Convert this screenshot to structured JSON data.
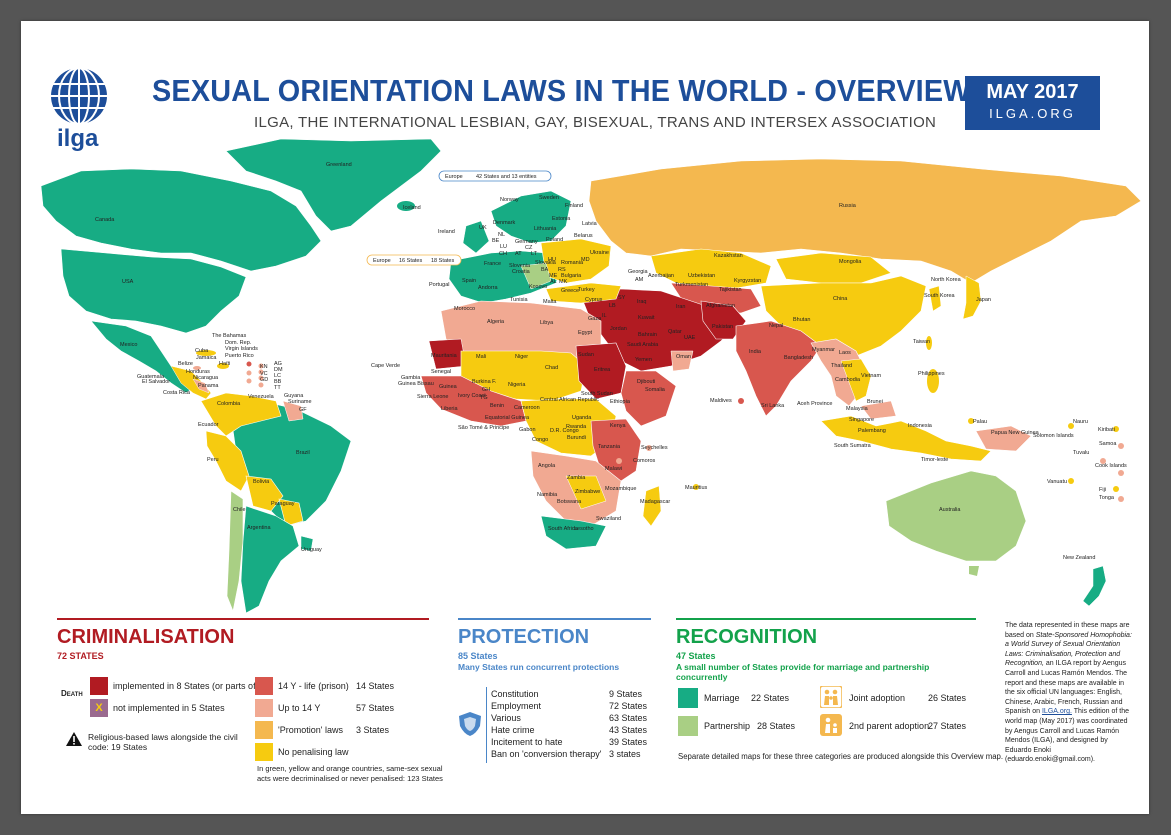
{
  "header": {
    "logo_text": "ilga",
    "title": "SEXUAL ORIENTATION LAWS IN THE WORLD - OVERVIEW",
    "subtitle": "ILGA, THE INTERNATIONAL LESBIAN, GAY, BISEXUAL, TRANS AND INTERSEX ASSOCIATION",
    "date": "MAY 2017",
    "site": "ILGA.ORG"
  },
  "colors": {
    "brand_blue": "#1d4e9a",
    "death_implemented": "#b11b22",
    "death_not_implemented": "#9a6a8f",
    "life": "#d8574e",
    "up_to_14": "#f1a992",
    "promotion": "#f4b84f",
    "no_penalising": "#f6cb10",
    "marriage": "#17ac84",
    "partnership": "#a9cf84",
    "protection_blue": "#4a86c8",
    "recognition_green": "#13a24b",
    "criminalisation_red": "#b11b22"
  },
  "map": {
    "europe_box": "Europe",
    "europe_box_count": "42 States and 13 entities",
    "europe_box2": "Europe",
    "europe_box2_a": "16 States",
    "europe_box2_b": "18 States",
    "labels": {
      "greenland": "Greenland",
      "canada": "Canada",
      "usa": "USA",
      "mexico": "Mexico",
      "cuba": "Cuba",
      "bahamas": "The Bahamas",
      "dom_rep": "Dom. Rep.",
      "virgin_islands": "Virgin Islands",
      "puerto_rico": "Puerto Rico",
      "jamaica": "Jamaica",
      "haiti": "Haïti",
      "belize": "Belize",
      "honduras": "Honduras",
      "guatemala": "Guatemala",
      "el_salvador": "El Salvador",
      "nicaragua": "Nicaragua",
      "costa_rica": "Costa Rica",
      "panama": "Panama",
      "ag": "AG",
      "dm": "DM",
      "lc": "LC",
      "bb": "BB",
      "tt": "TT",
      "kn": "KN",
      "vc": "VC",
      "gd": "GD",
      "colombia": "Colombia",
      "venezuela": "Venezuela",
      "guyana": "Guyana",
      "suriname": "Suriname",
      "gf": "GF",
      "ecuador": "Ecuador",
      "peru": "Peru",
      "brazil": "Brazil",
      "bolivia": "Bolivia",
      "paraguay": "Paraguay",
      "chile": "Chile",
      "argentina": "Argentina",
      "uruguay": "Uruguay",
      "iceland": "Iceland",
      "ireland": "Ireland",
      "uk": "UK",
      "portugal": "Portugal",
      "spain": "Spain",
      "andorra": "Andorra",
      "france": "France",
      "norway": "Norway",
      "sweden": "Sweden",
      "finland": "Finland",
      "denmark": "Denmark",
      "estonia": "Estonia",
      "latvia": "Latvia",
      "lithuania": "Lithuania",
      "nl": "NL",
      "be": "BE",
      "lu": "LU",
      "ch": "CH",
      "germany": "Germany",
      "poland": "Poland",
      "belarus": "Belarus",
      "ukraine": "Ukraine",
      "cz": "CZ",
      "sk": "SK",
      "at": "AT",
      "hu": "HU",
      "lt": "LT",
      "slovenia": "Slovenia",
      "croatia": "Croatia",
      "ba": "BA",
      "rs": "RS",
      "me": "ME",
      "mk": "MK",
      "al": "AL",
      "kosovo": "Kosovo",
      "slovakia": "Slovakia",
      "romania": "Romania",
      "md": "MD",
      "bulgaria": "Bulgaria",
      "greece": "Greece",
      "malta": "Malta",
      "turkey": "Turkey",
      "cyprus": "Cyprus",
      "russia": "Russia",
      "kazakhstan": "Kazakhstan",
      "mongolia": "Mongolia",
      "china": "China",
      "north_korea": "North Korea",
      "south_korea": "South Korea",
      "japan": "Japan",
      "taiwan": "Taiwan",
      "georgia": "Georgia",
      "am": "AM",
      "azerbaijan": "Azerbaijan",
      "uzbekistan": "Uzbekistan",
      "turkmenistan": "Turkmenistan",
      "kyrgyzstan": "Kyrgyzstan",
      "tajikistan": "Tajikistan",
      "afghanistan": "Afghanistan",
      "pakistan": "Pakistan",
      "iran": "Iran",
      "iraq": "Iraq",
      "sy": "SY",
      "lb": "LB",
      "il": "IL",
      "gaza": "Gaza",
      "jordan": "Jordan",
      "kuwait": "Kuwait",
      "bahrain": "Bahrain",
      "qatar": "Qatar",
      "uae": "UAE",
      "saudi_arabia": "Saudi Arabia",
      "oman": "Oman",
      "yemen": "Yemen",
      "india": "India",
      "nepal": "Nepal",
      "bhutan": "Bhutan",
      "bangladesh": "Bangladesh",
      "myanmar": "Myanmar",
      "laos": "Laos",
      "thailand": "Thailand",
      "cambodia": "Cambodia",
      "vietnam": "Vietnam",
      "philippines": "Philippines",
      "sri_lanka": "Sri Lanka",
      "maldives": "Maldives",
      "malaysia": "Malaysia",
      "brunei": "Brunei",
      "singapore": "Singapore",
      "indonesia": "Indonesia",
      "aceh": "Aceh Province",
      "palembang": "Palembang",
      "south_sumatra": "South Sumatra",
      "timor_leste": "Timor-leste",
      "palau": "Palau",
      "papua": "Papua New Guinea",
      "solomon": "Solomon Islands",
      "nauru": "Nauru",
      "kiribati": "Kiribati",
      "samoa": "Samoa",
      "tuvalu": "Tuvalu",
      "cook": "Cook Islands",
      "vanuatu": "Vanuatu",
      "fiji": "Fiji",
      "tonga": "Tonga",
      "australia": "Australia",
      "new_zealand": "New Zealand",
      "morocco": "Morocco",
      "algeria": "Algeria",
      "tunisia": "Tunisia",
      "libya": "Libya",
      "egypt": "Egypt",
      "mauritania": "Mauritania",
      "mali": "Mali",
      "niger": "Niger",
      "chad": "Chad",
      "sudan": "Sudan",
      "eritrea": "Eritrea",
      "djibouti": "Djibouti",
      "ethiopia": "Ethiopia",
      "somalia": "Somalia",
      "cape_verde": "Cape Verde",
      "senegal": "Senegal",
      "gambia": "Gambia",
      "guinea_bissau": "Guinea Bissau",
      "guinea": "Guinea",
      "sierra_leone": "Sierra Leone",
      "liberia": "Liberia",
      "ivory_coast": "Ivory Coast",
      "burkina": "Burkina F.",
      "gh": "GH",
      "tg": "TG",
      "benin": "Benin",
      "nigeria": "Nigeria",
      "cameroon": "Cameroon",
      "eq_guinea": "Equatorial Guinea",
      "sao_tome": "São Tomé & Principe",
      "gabon": "Gabon",
      "congo": "Congo",
      "car": "Central African Republic",
      "south_sudan": "South Sudan",
      "drc": "D.R. Congo",
      "uganda": "Uganda",
      "kenya": "Kenya",
      "rwanda": "Rwanda",
      "burundi": "Burundi",
      "tanzania": "Tanzania",
      "seychelles": "Seychelles",
      "comoros": "Comoros",
      "angola": "Angola",
      "zambia": "Zambia",
      "malawi": "Malawi",
      "mozambique": "Mozambique",
      "zimbabwe": "Zimbabwe",
      "namibia": "Namibia",
      "botswana": "Botswana",
      "madagascar": "Madagascar",
      "mauritius": "Mauritius",
      "south_africa": "South Africa",
      "lesotho": "Lesotho",
      "swaziland": "Swaziland"
    }
  },
  "criminalisation": {
    "title": "CRIMINALISATION",
    "count": "72 STATES",
    "death_label": "Death",
    "items": [
      {
        "label": "implemented in 8 States (or parts of)"
      },
      {
        "label": "not implemented in 5 States",
        "mark": "X"
      }
    ],
    "penalties": [
      {
        "label": "14 Y - life (prison)",
        "count": "14 States"
      },
      {
        "label": "Up to 14 Y",
        "count": "57 States"
      },
      {
        "label": "'Promotion' laws",
        "count": "3 States"
      },
      {
        "label": "No penalising law",
        "count": ""
      }
    ],
    "religious": "Religious-based laws alongside the civil code: 19 States",
    "footnote": "In green, yellow and orange countries, same-sex sexual acts were decriminalised or never penalised: 123 States"
  },
  "protection": {
    "title": "PROTECTION",
    "count": "85 States",
    "subtitle": "Many States run concurrent protections",
    "rows": [
      {
        "label": "Constitution",
        "count": "9 States"
      },
      {
        "label": "Employment",
        "count": "72 States"
      },
      {
        "label": "Various",
        "count": "63 States"
      },
      {
        "label": "Hate crime",
        "count": "43 States"
      },
      {
        "label": "Incitement to hate",
        "count": "39 States"
      },
      {
        "label": "Ban on 'conversion therapy'",
        "count": "3 states"
      }
    ]
  },
  "recognition": {
    "title": "RECOGNITION",
    "count": "47 States",
    "subtitle": "A small number of States provide for marriage and partnership concurrently",
    "marriage": "Marriage",
    "marriage_count": "22 States",
    "partnership": "Partnership",
    "partnership_count": "28 States",
    "joint": "Joint adoption",
    "joint_count": "26 States",
    "second": "2nd parent adoption",
    "second_count": "27 States",
    "footer": "Separate detailed maps for these three categories are produced alongside this Overview map."
  },
  "credits": {
    "p1": "The data represented in these maps are based on",
    "p1_italic": "State-Sponsored Homophobia: a World Survey of Sexual Orientation Laws: Criminalisation, Protection and Recognition,",
    "p2": "an ILGA report by Aengus Carroll and Lucas Ramón Mendos. The report and these maps are available in the six official UN languages: English, Chinese, Arabic, French, Russian and Spanish on",
    "link": "ILGA.org.",
    "p3": "This edition of the world map (May 2017) was coordinated by Aengus Carroll and Lucas Ramón Mendos (ILGA), and designed by Eduardo Enoki (eduardo.enoki@gmail.com)."
  }
}
